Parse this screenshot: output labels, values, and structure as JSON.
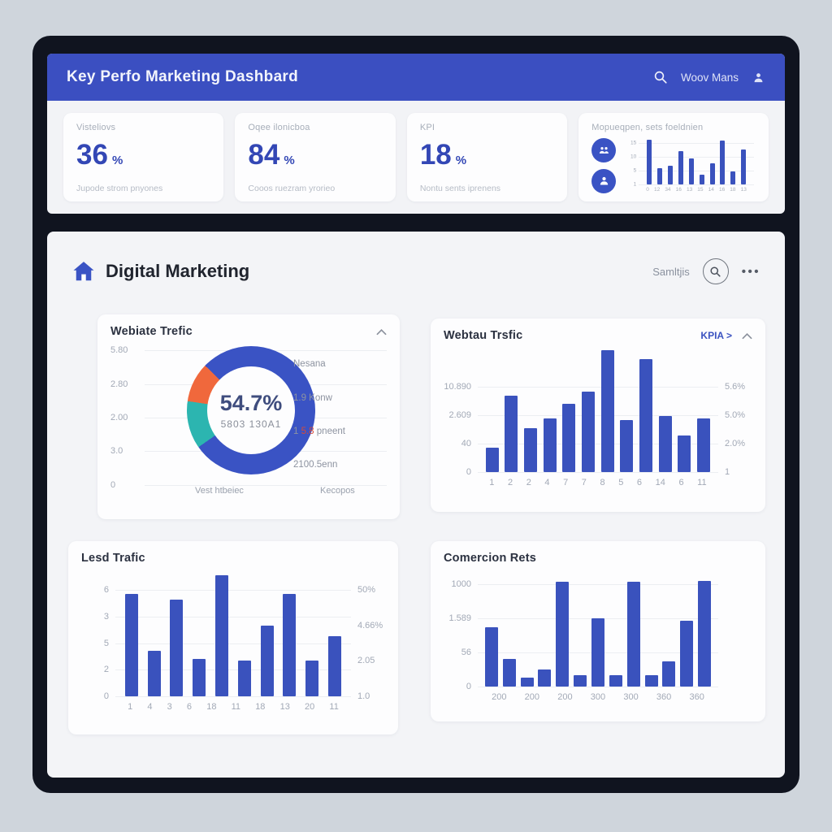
{
  "header": {
    "title": "Key Perfo Marketing Dashbard",
    "user_label": "Woov Mans"
  },
  "kpi_cards": [
    {
      "label": "Visteliovs",
      "value": "36",
      "unit": "%",
      "subtitle": "Jupode strom pnyones"
    },
    {
      "label": "Oqee ilonicboa",
      "value": "84",
      "unit": "%",
      "subtitle": "Cooos ruezram yrorieo"
    },
    {
      "label": "KPI",
      "value": "18",
      "unit": "%",
      "subtitle": "Nontu sents iprenens"
    },
    {
      "label": "Mopueqpen, sets foeldnien"
    }
  ],
  "section": {
    "title": "Digital Marketing",
    "right_label": "Samltjis"
  },
  "colors": {
    "accent": "#3b4fc1",
    "bar": "#3a52bd",
    "donut_blue": "#3a53c4",
    "donut_teal": "#2cb5b0",
    "donut_orange": "#f0683c",
    "red_text": "#d44a3a",
    "frame": "#10141f"
  },
  "chart_data": [
    {
      "type": "pie",
      "title": "Webiate Trefic",
      "center_value": "54.7%",
      "center_label": "5803 130A1",
      "rotation": 235,
      "slices": [
        {
          "name": "teal",
          "value": 12,
          "color": "#2cb5b0"
        },
        {
          "name": "orange",
          "value": 10,
          "color": "#f0683c"
        },
        {
          "name": "blue",
          "value": 78,
          "color": "#3a53c4"
        }
      ],
      "y_ticks": [
        "5.80",
        "2.80",
        "2.00",
        "3.0",
        "0"
      ],
      "side_labels": [
        {
          "text": "Nesana"
        },
        {
          "text": "1.9 Konw"
        },
        {
          "parts": [
            {
              "t": "1 "
            },
            {
              "t": "5.8",
              "red": true
            },
            {
              "t": " pneent"
            }
          ]
        },
        {
          "text": "2100.5enn"
        }
      ],
      "bottom_labels": [
        "Vest htbeiec",
        "Kecopos"
      ],
      "grid": true,
      "legend": false
    },
    {
      "type": "bar",
      "title": "Webtau Trsfic",
      "link_label": "KPIA >",
      "values": [
        20,
        63,
        36,
        44,
        56,
        66,
        100,
        43,
        93,
        46,
        30,
        44
      ],
      "x_labels": [
        "1",
        "2",
        "2",
        "4",
        "7",
        "7",
        "8",
        "5",
        "6",
        "14",
        "6",
        "11"
      ],
      "y_ticks_left": [
        "10.890",
        "2.609",
        "40",
        "0"
      ],
      "y_ticks_right": [
        "5.6%",
        "5.0%",
        "2.0%",
        "1"
      ],
      "ylim": [
        0,
        100
      ],
      "tick_top": 0.3,
      "grid": true,
      "legend": false
    },
    {
      "type": "bar",
      "title": "Lesd Trafic",
      "values": [
        83,
        37,
        78,
        30,
        98,
        29,
        57,
        83,
        29,
        49
      ],
      "x_labels": [
        "1",
        "4",
        "3",
        "6",
        "18",
        "11",
        "18",
        "13",
        "20",
        "11"
      ],
      "y_ticks_left": [
        "6",
        "3",
        "5",
        "2",
        "0"
      ],
      "y_ticks_right": [
        "50%",
        "4.66%",
        "2.05",
        "1.0"
      ],
      "ylim": [
        0,
        100
      ],
      "tick_top": 0.14,
      "grid": true,
      "legend": false
    },
    {
      "type": "bar",
      "title": "Comercion Rets",
      "values": [
        52,
        24,
        8,
        15,
        92,
        10,
        60,
        10,
        92,
        10,
        22,
        58,
        93
      ],
      "x_labels": [
        "200",
        "200",
        "200",
        "300",
        "300",
        "360",
        "360"
      ],
      "y_ticks_left": [
        "1000",
        "1.589",
        "56",
        "0"
      ],
      "y_ticks_right": [],
      "ylim": [
        0,
        100
      ],
      "tick_top": 0.1,
      "grid": true,
      "legend": false
    },
    {
      "type": "bar",
      "title": "",
      "values": [
        95,
        35,
        40,
        70,
        55,
        20,
        45,
        93,
        28,
        75
      ],
      "x_labels": [
        "0",
        "12",
        "34",
        "16",
        "13",
        "15",
        "14",
        "16",
        "18",
        "13"
      ],
      "y_ticks_left": [
        "15",
        "10",
        "5",
        "1"
      ],
      "y_ticks_right": [],
      "ylim": [
        0,
        100
      ],
      "tick_top": 0.12,
      "grid": true,
      "legend": false
    }
  ]
}
